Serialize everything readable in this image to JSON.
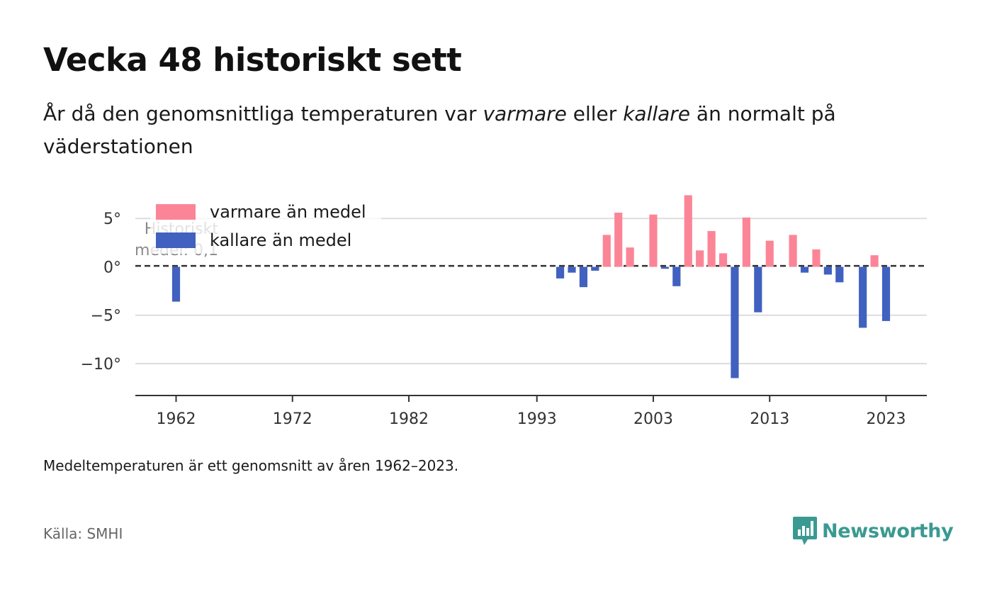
{
  "title": "Vecka 48 historiskt sett",
  "subtitle": {
    "part1": "År då den genomsnittliga temperaturen var ",
    "warmer": "varmare",
    "part2": " eller ",
    "colder": "kallare",
    "part3": " än normalt på väderstationen"
  },
  "footnote": "Medeltemperaturen är ett genomsnitt av åren 1962–2023.",
  "source": "Källa: SMHI",
  "logo": {
    "text": "Newsworthy",
    "icon": "newsworthy-chart-bubble-icon",
    "color": "#3a9a91"
  },
  "colors": {
    "warm": "#fb8597",
    "cold": "#4061bf",
    "grid": "#dddddd",
    "axis": "#333333"
  },
  "chart_data": {
    "type": "bar",
    "xlabel": "",
    "ylabel": "",
    "x_ticks": [
      1962,
      1972,
      1982,
      1993,
      2003,
      2013,
      2023
    ],
    "xlim": [
      1958.5,
      2026.5
    ],
    "y_ticks": [
      5,
      0,
      -5,
      -10
    ],
    "y_tick_labels": [
      "5°",
      "0°",
      "−5°",
      "−10°"
    ],
    "ylim": [
      -13.3,
      7.8
    ],
    "grid": true,
    "legend": {
      "position": "top-left",
      "entries": [
        {
          "label": "varmare än medel",
          "color": "#fb8597"
        },
        {
          "label": "kallare än medel",
          "color": "#4061bf"
        }
      ]
    },
    "reference_line": {
      "value": 0.1,
      "label_line1": "Historiskt",
      "label_line2": "medel: 0,1",
      "style": "dashed"
    },
    "series": [
      {
        "name": "varmare än medel",
        "color": "#fb8597",
        "x": [
          1999,
          2000,
          2001,
          2003,
          2006,
          2007,
          2008,
          2009,
          2011,
          2013,
          2015,
          2017,
          2022
        ],
        "values": [
          3.3,
          5.6,
          2.0,
          5.4,
          7.4,
          1.7,
          3.7,
          1.4,
          5.1,
          2.7,
          3.3,
          1.8,
          1.2
        ]
      },
      {
        "name": "kallare än medel",
        "color": "#4061bf",
        "x": [
          1962,
          1995,
          1996,
          1997,
          1998,
          2004,
          2005,
          2010,
          2012,
          2016,
          2018,
          2019,
          2021,
          2023
        ],
        "values": [
          -3.6,
          -1.2,
          -0.6,
          -2.1,
          -0.4,
          -0.2,
          -2.0,
          -11.5,
          -4.7,
          -0.6,
          -0.8,
          -1.6,
          -6.3,
          -5.6
        ]
      }
    ]
  }
}
